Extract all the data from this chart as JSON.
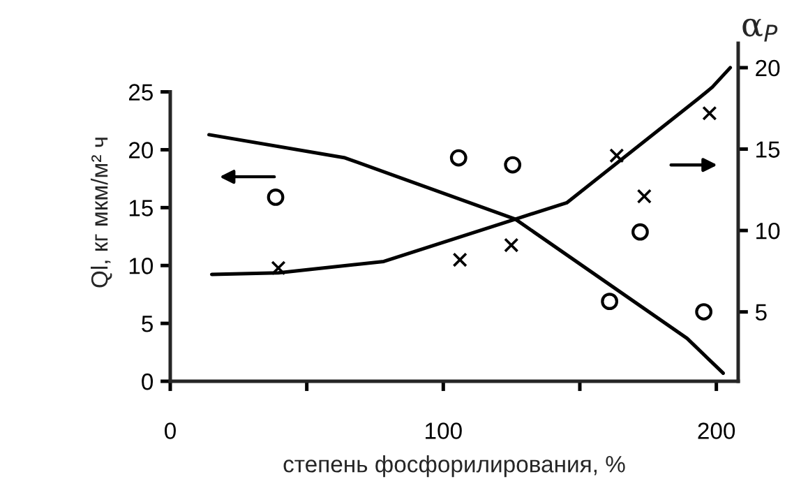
{
  "chart_data": {
    "type": "line",
    "xlabel": "степень фосфорилирования, %",
    "ylabel": "Ql, кг мкм/м² ч",
    "y2label": "α$_{P}$",
    "xlim": [
      0,
      208
    ],
    "xticks": [
      0,
      {
        "value": 50,
        "label": null
      },
      100,
      {
        "value": 150,
        "label": null
      },
      200
    ],
    "ylim": [
      0,
      29.2
    ],
    "yticks": [
      0,
      5,
      10,
      15,
      20,
      25
    ],
    "y2lim": [
      0.74,
      21.5
    ],
    "y2ticks": [
      5,
      10,
      15,
      20
    ],
    "grid": false,
    "legend": false,
    "series": [
      {
        "color": "#000000",
        "marker": "none",
        "x": [
          14.2,
          64,
          126.4,
          189.3,
          202.5
        ],
        "values": [
          21.3,
          19.3,
          14.0,
          3.7,
          0.7
        ]
      },
      {
        "axis": "y2",
        "color": "#000000",
        "marker": "none",
        "x": [
          15.2,
          39.6,
          78.2,
          126.4,
          145.2,
          193.4,
          198.5,
          205.1
        ],
        "values": [
          7.3,
          7.4,
          8.1,
          10.7,
          11.7,
          18.1,
          18.8,
          20.0
        ]
      },
      {
        "type": "scatter",
        "color": "#000000",
        "marker": "circle",
        "x": [
          38.6,
          105.6,
          125.4,
          172.1,
          160.9,
          195.4
        ],
        "values": [
          15.9,
          19.3,
          18.7,
          12.9,
          6.9,
          6.0
        ]
      },
      {
        "type": "scatter",
        "axis": "y2",
        "color": "#000000",
        "marker": "cross",
        "x": [
          39.6,
          106.1,
          124.9,
          163.5,
          173.6,
          197.5
        ],
        "values": [
          7.7,
          8.2,
          9.1,
          14.6,
          12.1,
          17.2
        ]
      }
    ]
  }
}
